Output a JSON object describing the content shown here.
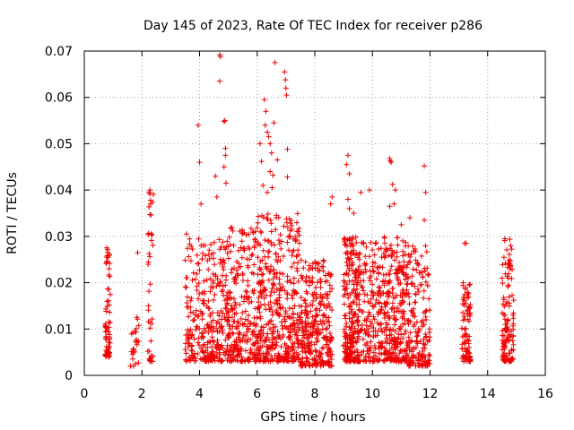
{
  "chart_data": {
    "type": "scatter",
    "title": "Day 145 of 2023, Rate Of TEC Index for receiver p286",
    "xlabel": "GPS time / hours",
    "ylabel": "ROTI / TECUs",
    "xlim": [
      0,
      16
    ],
    "ylim": [
      0,
      0.07
    ],
    "x_ticks": [
      "0",
      "2",
      "4",
      "6",
      "8",
      "10",
      "12",
      "14",
      "16"
    ],
    "y_ticks": [
      "0",
      "0.01",
      "0.02",
      "0.03",
      "0.04",
      "0.05",
      "0.06",
      "0.07"
    ],
    "grid": true,
    "marker": "plus",
    "color": "#ee0000",
    "series": [
      {
        "name": "p286",
        "clusters": [
          {
            "x": [
              0.72,
              0.9
            ],
            "y": [
              0.004,
              0.0275
            ],
            "n": 70
          },
          {
            "x": [
              1.6,
              1.9
            ],
            "y": [
              0.002,
              0.014
            ],
            "n": 25
          },
          {
            "x": [
              2.2,
              2.4
            ],
            "y": [
              0.003,
              0.04
            ],
            "n": 40
          },
          {
            "x": [
              3.5,
              4.0
            ],
            "y": [
              0.003,
              0.03
            ],
            "n": 90
          },
          {
            "x": [
              4.0,
              5.0
            ],
            "y": [
              0.003,
              0.03
            ],
            "n": 220
          },
          {
            "x": [
              5.0,
              6.0
            ],
            "y": [
              0.003,
              0.032
            ],
            "n": 240
          },
          {
            "x": [
              6.0,
              7.5
            ],
            "y": [
              0.003,
              0.035
            ],
            "n": 420
          },
          {
            "x": [
              7.5,
              8.6
            ],
            "y": [
              0.002,
              0.025
            ],
            "n": 300
          },
          {
            "x": [
              9.0,
              9.5
            ],
            "y": [
              0.003,
              0.03
            ],
            "n": 230
          },
          {
            "x": [
              9.5,
              10.4
            ],
            "y": [
              0.003,
              0.029
            ],
            "n": 200
          },
          {
            "x": [
              10.4,
              11.2
            ],
            "y": [
              0.003,
              0.03
            ],
            "n": 260
          },
          {
            "x": [
              11.2,
              12.0
            ],
            "y": [
              0.002,
              0.028
            ],
            "n": 180
          },
          {
            "x": [
              13.1,
              13.4
            ],
            "y": [
              0.003,
              0.02
            ],
            "n": 90
          },
          {
            "x": [
              14.5,
              14.9
            ],
            "y": [
              0.003,
              0.03
            ],
            "n": 130
          }
        ],
        "outliers": [
          {
            "x": 0.78,
            "y": 0.0275
          },
          {
            "x": 1.85,
            "y": 0.0265
          },
          {
            "x": 2.28,
            "y": 0.04
          },
          {
            "x": 2.3,
            "y": 0.037
          },
          {
            "x": 3.55,
            "y": 0.0305
          },
          {
            "x": 3.95,
            "y": 0.054
          },
          {
            "x": 4.0,
            "y": 0.046
          },
          {
            "x": 4.05,
            "y": 0.037
          },
          {
            "x": 4.55,
            "y": 0.043
          },
          {
            "x": 4.6,
            "y": 0.0385
          },
          {
            "x": 4.7,
            "y": 0.0692
          },
          {
            "x": 4.72,
            "y": 0.0688
          },
          {
            "x": 4.7,
            "y": 0.0635
          },
          {
            "x": 4.85,
            "y": 0.0548
          },
          {
            "x": 4.88,
            "y": 0.055
          },
          {
            "x": 4.9,
            "y": 0.049
          },
          {
            "x": 4.9,
            "y": 0.0475
          },
          {
            "x": 4.85,
            "y": 0.045
          },
          {
            "x": 4.92,
            "y": 0.0415
          },
          {
            "x": 6.1,
            "y": 0.05
          },
          {
            "x": 6.15,
            "y": 0.0462
          },
          {
            "x": 6.2,
            "y": 0.041
          },
          {
            "x": 6.25,
            "y": 0.0595
          },
          {
            "x": 6.3,
            "y": 0.057
          },
          {
            "x": 6.28,
            "y": 0.054
          },
          {
            "x": 6.35,
            "y": 0.0525
          },
          {
            "x": 6.4,
            "y": 0.0515
          },
          {
            "x": 6.45,
            "y": 0.05
          },
          {
            "x": 6.5,
            "y": 0.048
          },
          {
            "x": 6.45,
            "y": 0.044
          },
          {
            "x": 6.55,
            "y": 0.0432
          },
          {
            "x": 6.52,
            "y": 0.0405
          },
          {
            "x": 6.35,
            "y": 0.0395
          },
          {
            "x": 6.58,
            "y": 0.0545
          },
          {
            "x": 6.62,
            "y": 0.0675
          },
          {
            "x": 6.7,
            "y": 0.0465
          },
          {
            "x": 6.95,
            "y": 0.0655
          },
          {
            "x": 6.98,
            "y": 0.0638
          },
          {
            "x": 7.0,
            "y": 0.062
          },
          {
            "x": 7.02,
            "y": 0.0605
          },
          {
            "x": 7.05,
            "y": 0.0488
          },
          {
            "x": 7.05,
            "y": 0.0428
          },
          {
            "x": 8.6,
            "y": 0.0385
          },
          {
            "x": 8.55,
            "y": 0.037
          },
          {
            "x": 9.15,
            "y": 0.0475
          },
          {
            "x": 9.2,
            "y": 0.0435
          },
          {
            "x": 9.1,
            "y": 0.0455
          },
          {
            "x": 9.15,
            "y": 0.038
          },
          {
            "x": 9.2,
            "y": 0.036
          },
          {
            "x": 9.35,
            "y": 0.035
          },
          {
            "x": 9.6,
            "y": 0.0395
          },
          {
            "x": 9.9,
            "y": 0.04
          },
          {
            "x": 10.6,
            "y": 0.0468
          },
          {
            "x": 10.62,
            "y": 0.0463
          },
          {
            "x": 10.65,
            "y": 0.046
          },
          {
            "x": 10.7,
            "y": 0.0412
          },
          {
            "x": 10.8,
            "y": 0.04
          },
          {
            "x": 10.75,
            "y": 0.037
          },
          {
            "x": 10.6,
            "y": 0.0365
          },
          {
            "x": 11.8,
            "y": 0.0452
          },
          {
            "x": 11.85,
            "y": 0.0395
          },
          {
            "x": 11.8,
            "y": 0.0335
          },
          {
            "x": 11.3,
            "y": 0.034
          },
          {
            "x": 11.0,
            "y": 0.0325
          },
          {
            "x": 13.2,
            "y": 0.0285
          },
          {
            "x": 13.25,
            "y": 0.0285
          },
          {
            "x": 14.6,
            "y": 0.0295
          },
          {
            "x": 14.8,
            "y": 0.028
          }
        ]
      }
    ]
  }
}
